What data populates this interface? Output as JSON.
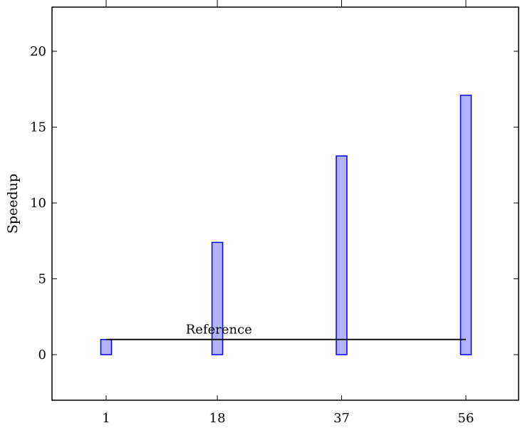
{
  "chart_data": {
    "type": "bar",
    "categories": [
      "1",
      "18",
      "37",
      "56"
    ],
    "x": [
      1,
      18,
      37,
      56
    ],
    "values": [
      1.0,
      7.4,
      13.1,
      17.1
    ],
    "ylabel": "Speedup",
    "xlabel": "",
    "title": "",
    "ylim": [
      -3,
      23
    ],
    "y_ticks": [
      0,
      5,
      10,
      15,
      20
    ],
    "x_ticks": [
      "1",
      "18",
      "37",
      "56"
    ],
    "reference": {
      "label": "Reference",
      "value": 1,
      "x_from": 1,
      "x_to": 56
    },
    "grid": false,
    "bar_fill": "#b3b3ff",
    "bar_stroke": "#0000ff"
  }
}
